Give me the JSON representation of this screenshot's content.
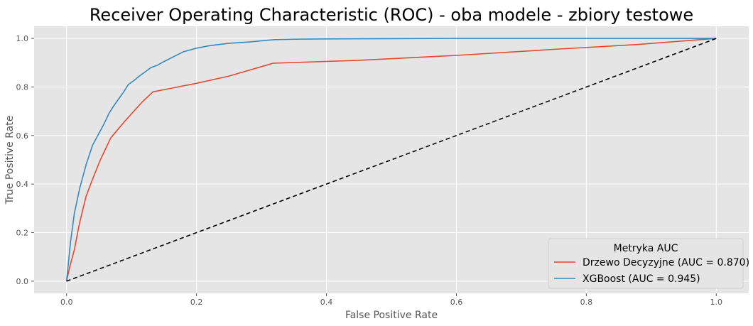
{
  "chart_data": {
    "type": "line",
    "title": "Receiver Operating Characteristic (ROC) - oba modele - zbiory testowe",
    "xlabel": "False Positive Rate",
    "ylabel": "True Positive Rate",
    "xlim": [
      -0.05,
      1.05
    ],
    "ylim": [
      -0.05,
      1.05
    ],
    "xticks": [
      "0.0",
      "0.2",
      "0.4",
      "0.6",
      "0.8",
      "1.0"
    ],
    "yticks": [
      "0.0",
      "0.2",
      "0.4",
      "0.6",
      "0.8",
      "1.0"
    ],
    "grid": true,
    "legend": {
      "title": "Metryka AUC",
      "position": "lower-right"
    },
    "series": [
      {
        "name": "Drzewo Decyzyjne (AUC = 0.870)",
        "color": "#E24A33",
        "x": [
          0.0,
          0.005,
          0.012,
          0.02,
          0.03,
          0.04,
          0.052,
          0.068,
          0.09,
          0.117,
          0.133,
          0.2,
          0.25,
          0.318,
          0.45,
          0.6,
          0.75,
          0.88,
          1.0
        ],
        "y": [
          0.0,
          0.06,
          0.13,
          0.24,
          0.35,
          0.42,
          0.5,
          0.59,
          0.66,
          0.74,
          0.78,
          0.815,
          0.845,
          0.898,
          0.91,
          0.93,
          0.955,
          0.975,
          1.0
        ]
      },
      {
        "name": "XGBoost (AUC = 0.945)",
        "color": "#348ABD",
        "x": [
          0.0,
          0.003,
          0.006,
          0.009,
          0.012,
          0.016,
          0.02,
          0.025,
          0.03,
          0.035,
          0.04,
          0.046,
          0.052,
          0.058,
          0.065,
          0.072,
          0.08,
          0.088,
          0.095,
          0.103,
          0.112,
          0.12,
          0.13,
          0.14,
          0.15,
          0.165,
          0.18,
          0.2,
          0.22,
          0.25,
          0.28,
          0.32,
          0.36,
          0.4,
          0.5,
          0.6,
          0.7,
          0.8,
          0.9,
          1.0
        ],
        "y": [
          0.0,
          0.08,
          0.16,
          0.22,
          0.28,
          0.33,
          0.38,
          0.43,
          0.48,
          0.52,
          0.56,
          0.59,
          0.62,
          0.65,
          0.69,
          0.72,
          0.75,
          0.78,
          0.81,
          0.825,
          0.845,
          0.86,
          0.88,
          0.89,
          0.905,
          0.925,
          0.945,
          0.96,
          0.97,
          0.98,
          0.985,
          0.995,
          0.997,
          0.998,
          0.999,
          1.0,
          1.0,
          1.0,
          1.0,
          1.0
        ]
      },
      {
        "name": "",
        "color": "#000000",
        "dashed": true,
        "x": [
          0.0,
          1.0
        ],
        "y": [
          0.0,
          1.0
        ]
      }
    ]
  }
}
